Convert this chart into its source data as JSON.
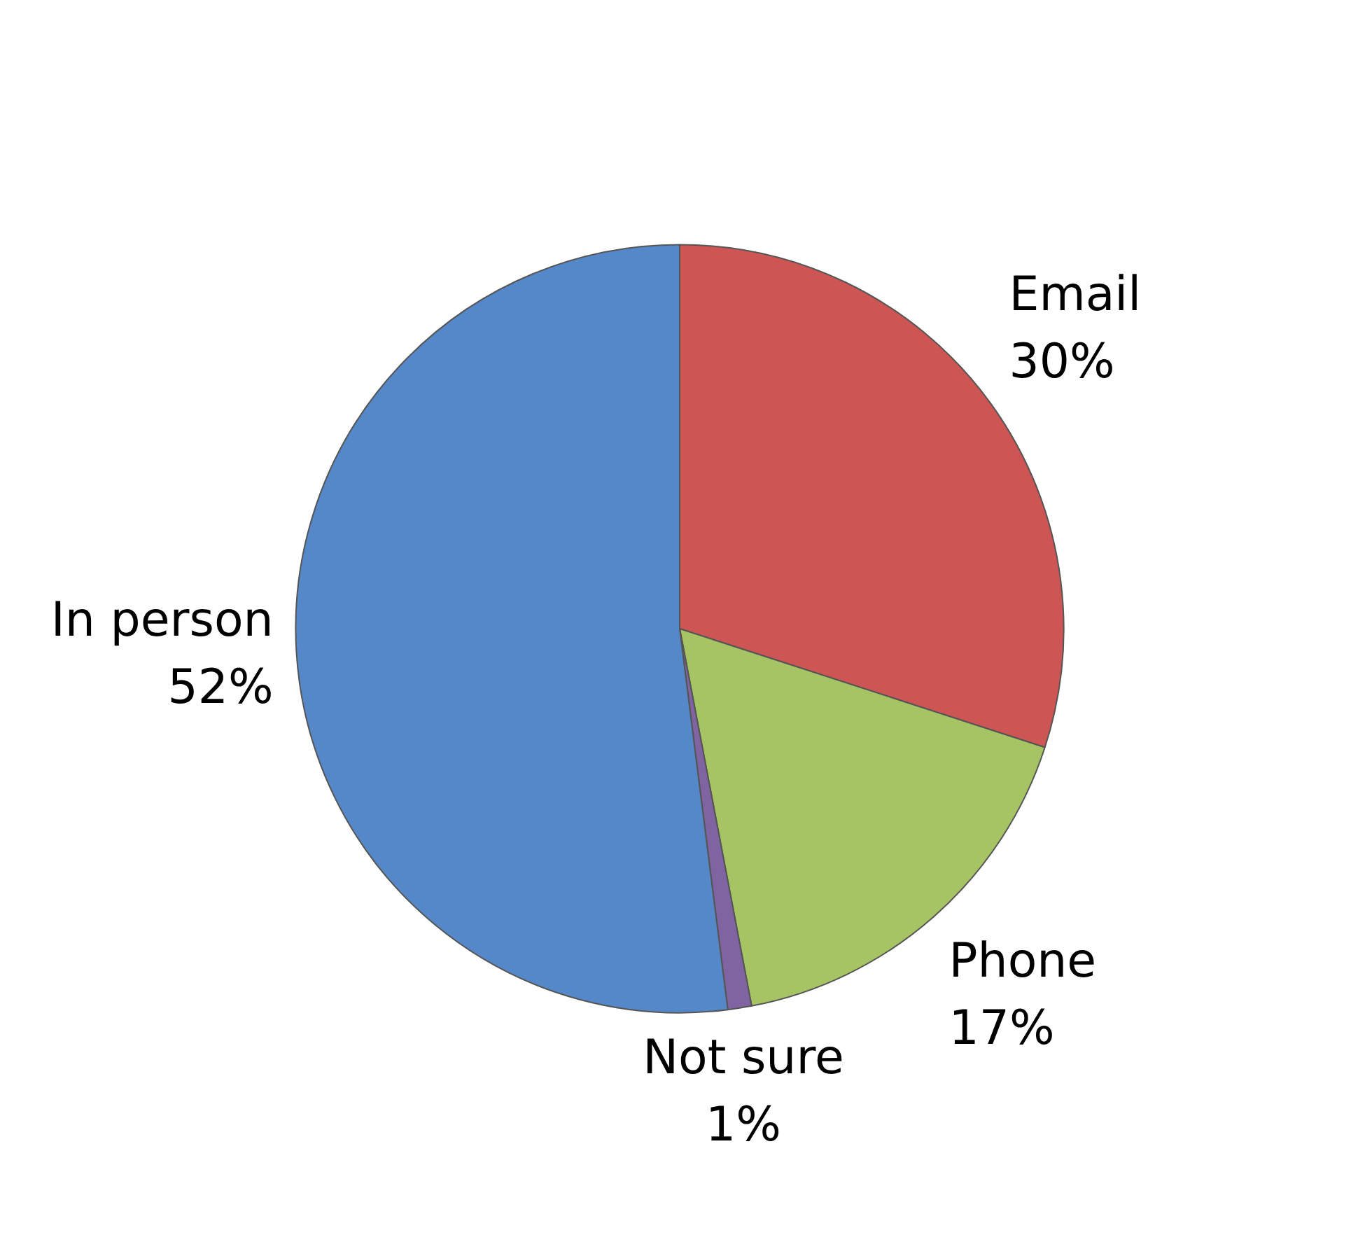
{
  "chart_data": {
    "type": "pie",
    "categories": [
      "Email",
      "Phone",
      "Not sure",
      "In person"
    ],
    "values": [
      30,
      17,
      1,
      52
    ],
    "value_labels": [
      "30%",
      "17%",
      "1%",
      "52%"
    ],
    "colors": [
      "#cd5554",
      "#a6c463",
      "#8064a2",
      "#5588c8"
    ]
  }
}
